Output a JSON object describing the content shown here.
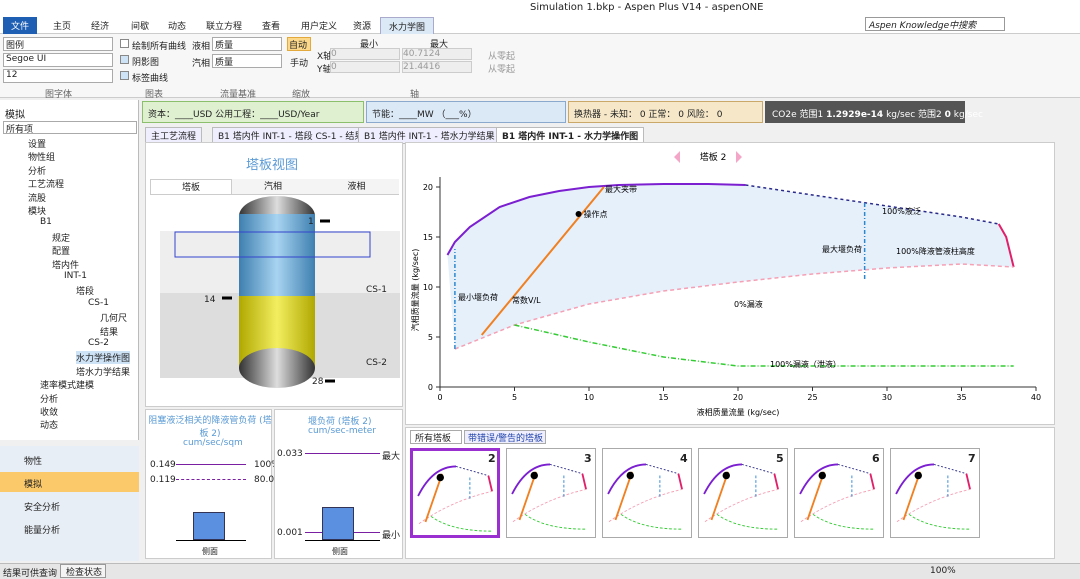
{
  "window": {
    "title": "Simulation 1.bkp - Aspen Plus V14 - aspenONE",
    "search": "Aspen Knowledge中搜索"
  },
  "ribbon": {
    "tabs": [
      "文件",
      "主页",
      "经济",
      "间歇",
      "动态",
      "联立方程",
      "查看",
      "用户定义",
      "资源",
      "水力学图"
    ],
    "font": {
      "legend": "图例",
      "family": "Segoe UI",
      "size": "12",
      "group": "图字体"
    },
    "chart_options": {
      "items": [
        "绘制所有曲线",
        "阴影图",
        "标签曲线"
      ],
      "group": "图表"
    },
    "flow_basis": {
      "liquid_label": "液相",
      "liquid": "质量",
      "vapor_label": "汽相",
      "vapor": "质量",
      "group": "流量基准"
    },
    "zoom": {
      "auto": "自动",
      "manual": "手动",
      "group": "缩放"
    },
    "axis": {
      "min": "最小",
      "max": "最大",
      "x_label": "X轴",
      "x_min": "0",
      "x_max": "40.7124",
      "y_label": "Y轴",
      "y_min": "0",
      "y_max": "21.4416",
      "from_zero": "从零起",
      "group": "轴"
    }
  },
  "summary": {
    "capital": "资本：____USD  公用工程：____USD/Year",
    "energy": "节能：____MW  （___%）",
    "hx": "换热器 - 未知： 0  正常： 0  风险： 0",
    "co2": "CO2e 范围1",
    "co2_v1": "1.2929e-14",
    "co2_u1": "kg/sec  范围2",
    "co2_v2": "0",
    "co2_u2": "kg/sec"
  },
  "nav": {
    "title": "模拟",
    "filter": "所有项",
    "tree": [
      "设置",
      "物性组",
      "分析",
      "工艺流程",
      "流股",
      "模块",
      "B1",
      "规定",
      "配置",
      "塔内件",
      "INT-1",
      "塔段",
      "CS-1",
      "几何尺",
      "结果",
      "CS-2",
      "水力学操作图",
      "塔水力学结果",
      "速率模式建模",
      "分析",
      "收敛",
      "动态"
    ],
    "sections": [
      "物性",
      "模拟",
      "安全分析",
      "能量分析"
    ]
  },
  "doc_tabs": [
    "主工艺流程",
    "B1 塔内件 INT-1 - 塔段 CS-1 - 结果",
    "B1 塔内件 INT-1 - 塔水力学结果",
    "B1 塔内件 INT-1 - 水力学操作图"
  ],
  "tower": {
    "title": "塔板视图",
    "tabs": [
      "塔板",
      "汽相",
      "液相"
    ],
    "streams": [
      "1",
      "14",
      "28"
    ],
    "sections": [
      "CS-1",
      "CS-2"
    ]
  },
  "downcomer": {
    "title": "阻塞液泛相关的降液管负荷 (塔板 2)",
    "unit": "cum/sec/sqm",
    "rows": [
      [
        "0.149",
        "100%"
      ],
      [
        "0.119",
        "80.0%"
      ]
    ],
    "footer": "侧面"
  },
  "weir": {
    "title": "堰负荷 (塔板 2)",
    "unit": "cum/sec-meter",
    "rows": [
      [
        "0.033",
        "最大"
      ],
      [
        "0.001",
        "最小"
      ]
    ],
    "footer": "侧面"
  },
  "plot": {
    "title": "塔板 2",
    "x_label": "液相质量流量 (kg/sec)",
    "y_label": "汽相质量流量 (kg/sec)",
    "xlim": [
      0,
      40
    ],
    "ylim": [
      0,
      21
    ],
    "xticks": [
      0,
      5,
      10,
      15,
      20,
      25,
      30,
      35,
      40
    ],
    "yticks": [
      0,
      5,
      10,
      15,
      20
    ],
    "series": [
      {
        "name": "最大夹带",
        "color": "#7b1fd0",
        "dash": "",
        "x": [
          0.5,
          1,
          2,
          4,
          6,
          8,
          10,
          12,
          15,
          18,
          20.5
        ],
        "y": [
          13.2,
          14.5,
          16,
          18,
          19,
          19.6,
          20,
          20.2,
          20.3,
          20.3,
          20.2
        ]
      },
      {
        "name": "100%液泛",
        "color": "#2a2a8a",
        "dash": "3,3",
        "x": [
          20.5,
          25,
          30,
          35,
          37.5
        ],
        "y": [
          20.2,
          19.2,
          18.1,
          17,
          16.3
        ]
      },
      {
        "name": "100%降液管液柱高度",
        "color": "#e0206a",
        "dash": "",
        "x": [
          37.5,
          38,
          38.5
        ],
        "y": [
          16.3,
          15,
          12
        ]
      },
      {
        "name": "0%漏液",
        "color": "#f5a0b5",
        "dash": "4,3",
        "x": [
          1,
          5,
          10,
          15,
          20,
          25,
          30,
          35,
          38.5
        ],
        "y": [
          3.8,
          6.2,
          8.3,
          9.6,
          10.5,
          11.3,
          11.9,
          12.3,
          12
        ]
      },
      {
        "name": "100%漏液（泄液）",
        "color": "#33cc33",
        "dash": "5,2,1,2",
        "x": [
          5,
          10,
          15,
          20,
          25,
          30,
          35,
          38.5
        ],
        "y": [
          6.2,
          4.5,
          3,
          2.1,
          2.1,
          2.1,
          2.1,
          2.1
        ]
      },
      {
        "name": "常数V/L",
        "color": "#f08020",
        "dash": "",
        "x": [
          2.8,
          11
        ],
        "y": [
          5.2,
          20
        ]
      },
      {
        "name": "最小堰负荷",
        "color": "#2a88d0",
        "dash": "4,2,1,2",
        "x": [
          1,
          1
        ],
        "y": [
          3.8,
          13.8
        ]
      },
      {
        "name": "最大堰负荷",
        "color": "#2a88d0",
        "dash": "4,2,1,2",
        "x": [
          28.5,
          28.5
        ],
        "y": [
          10.8,
          18.5
        ]
      }
    ],
    "operating_point": {
      "label": "操作点",
      "x": 9.3,
      "y": 17.3
    }
  },
  "plot_tabs": [
    "所有塔板",
    "带错误/警告的塔板"
  ],
  "thumbnails": [
    "2",
    "3",
    "4",
    "5",
    "6",
    "7"
  ],
  "status": {
    "left": "结果可供查询",
    "check": "检查状态",
    "zoom": "100%"
  }
}
